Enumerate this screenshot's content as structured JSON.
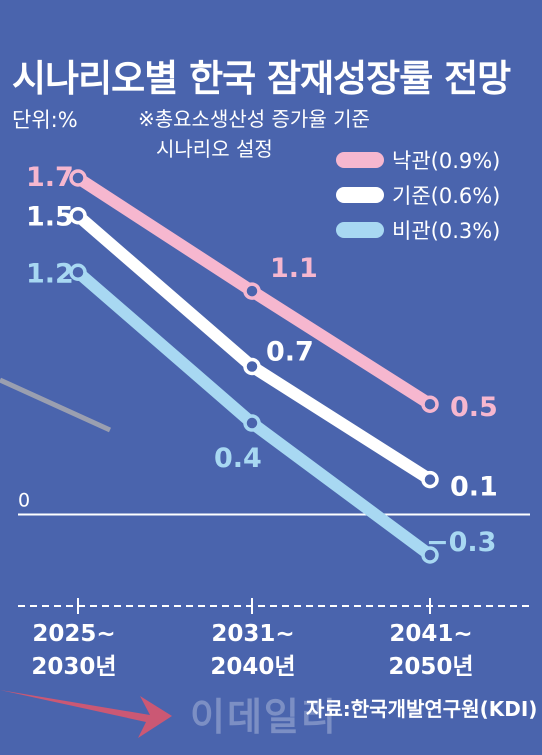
{
  "title": "시나리오별 한국 잠재성장률 전망",
  "unit": "단위:%",
  "note": [
    "※총요소생산성 증가율 기준",
    "시나리오 설정"
  ],
  "source": "자료:한국개발연구원(KDI)",
  "watermark": "이데일리",
  "colors": {
    "background": "#4a64ad",
    "optimistic": "#f6b7cf",
    "baseline": "#ffffff",
    "pessimistic": "#a8d8f2"
  },
  "chart_data": {
    "type": "line",
    "categories": [
      [
        "2025~",
        "2030년"
      ],
      [
        "2031~",
        "2040년"
      ],
      [
        "2041~",
        "2050년"
      ]
    ],
    "series": [
      {
        "name": "낙관(0.9%)",
        "key": "optimistic",
        "values": [
          1.7,
          1.1,
          0.5
        ],
        "labels": [
          "1.7",
          "1.1",
          "0.5"
        ]
      },
      {
        "name": "기준(0.6%)",
        "key": "baseline",
        "values": [
          1.5,
          0.7,
          0.1
        ],
        "labels": [
          "1.5",
          "0.7",
          "0.1"
        ]
      },
      {
        "name": "비관(0.3%)",
        "key": "pessimistic",
        "values": [
          1.2,
          0.4,
          -0.3
        ],
        "labels": [
          "1.2",
          "0.4",
          "−0.3"
        ]
      }
    ],
    "zero_label": "0",
    "ylim": [
      -0.3,
      1.7
    ],
    "legend": "top-right",
    "grid": false
  }
}
